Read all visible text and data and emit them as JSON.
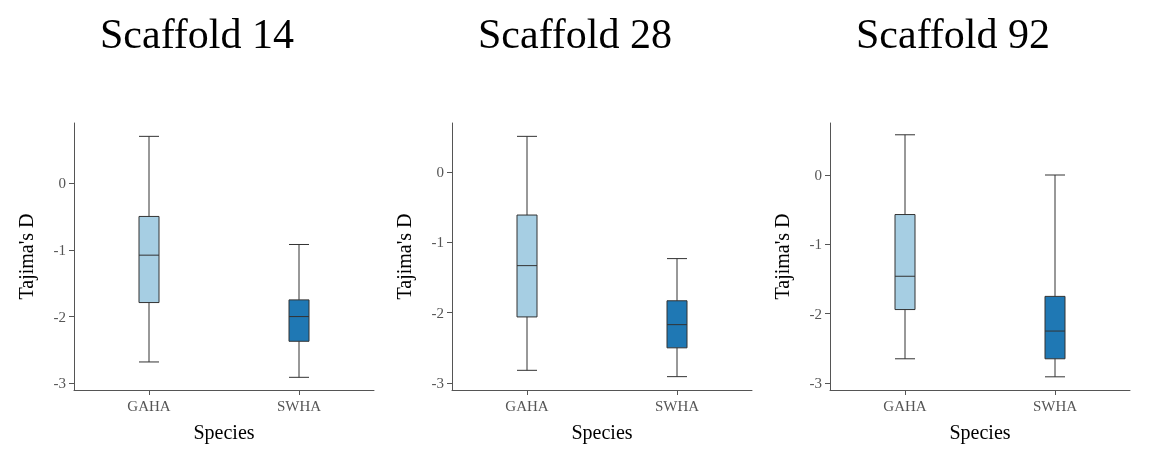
{
  "chart_data": [
    {
      "type": "box",
      "title": "Scaffold 14",
      "xlabel": "Species",
      "ylabel": "Tajima's D",
      "categories": [
        "GAHA",
        "SWHA"
      ],
      "colors": [
        "#a6cee3",
        "#1f78b4"
      ],
      "boxes": [
        {
          "low": -2.68,
          "q1": -1.79,
          "median": -1.08,
          "q3": -0.5,
          "high": 0.7
        },
        {
          "low": -2.91,
          "q1": -2.37,
          "median": -2.0,
          "q3": -1.75,
          "high": -0.92
        }
      ],
      "ylim": [
        -3.1,
        0.9
      ],
      "yticks": [
        -3,
        -2,
        -1,
        0
      ],
      "grid": false
    },
    {
      "type": "box",
      "title": "Scaffold 28",
      "xlabel": "Species",
      "ylabel": "Tajima's D",
      "categories": [
        "GAHA",
        "SWHA"
      ],
      "colors": [
        "#a6cee3",
        "#1f78b4"
      ],
      "boxes": [
        {
          "low": -2.82,
          "q1": -2.06,
          "median": -1.33,
          "q3": -0.61,
          "high": 0.51
        },
        {
          "low": -2.91,
          "q1": -2.5,
          "median": -2.17,
          "q3": -1.83,
          "high": -1.23
        }
      ],
      "ylim": [
        -3.1,
        0.7
      ],
      "yticks": [
        -3,
        -2,
        -1,
        0
      ],
      "grid": false
    },
    {
      "type": "box",
      "title": "Scaffold 92",
      "xlabel": "Species",
      "ylabel": "Tajima's D",
      "categories": [
        "GAHA",
        "SWHA"
      ],
      "colors": [
        "#a6cee3",
        "#1f78b4"
      ],
      "boxes": [
        {
          "low": -2.65,
          "q1": -1.94,
          "median": -1.46,
          "q3": -0.57,
          "high": 0.58
        },
        {
          "low": -2.91,
          "q1": -2.65,
          "median": -2.25,
          "q3": -1.75,
          "high": 0.0
        }
      ],
      "ylim": [
        -3.1,
        0.75
      ],
      "yticks": [
        -3,
        -2,
        -1,
        0
      ],
      "grid": false
    }
  ]
}
